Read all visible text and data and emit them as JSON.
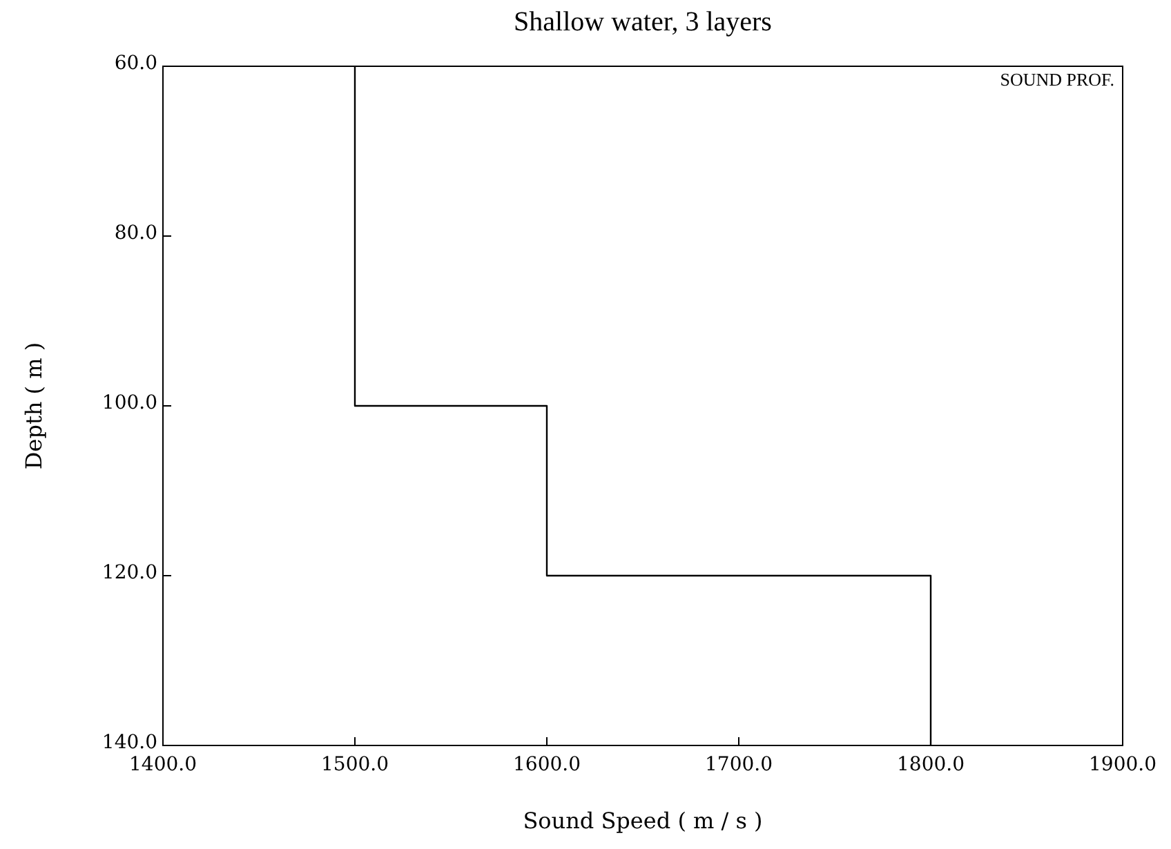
{
  "chart_data": {
    "type": "line",
    "title": "Shallow water, 3 layers",
    "xlabel": "Sound Speed ( m / s )",
    "ylabel": "Depth ( m )",
    "annotations": [
      "SOUND PROF."
    ],
    "x": [
      1500,
      1500,
      1600,
      1600,
      1800,
      1800
    ],
    "series": [
      {
        "color": "#000000",
        "values": [
          60,
          100,
          100,
          120,
          120,
          140
        ]
      }
    ],
    "xlim": [
      1400,
      1900
    ],
    "xticks": [
      {
        "value": 1400,
        "label": "1400.0"
      },
      {
        "value": 1500,
        "label": "1500.0"
      },
      {
        "value": 1600,
        "label": "1600.0"
      },
      {
        "value": 1700,
        "label": "1700.0"
      },
      {
        "value": 1800,
        "label": "1800.0"
      },
      {
        "value": 1900,
        "label": "1900.0"
      }
    ],
    "ylim": [
      140,
      60
    ],
    "yticks": [
      {
        "value": 60,
        "label": "60.0"
      },
      {
        "value": 80,
        "label": "80.0"
      },
      {
        "value": 100,
        "label": "100.0"
      },
      {
        "value": 120,
        "label": "120.0"
      },
      {
        "value": 140,
        "label": "140.0"
      }
    ],
    "grid": false,
    "marker": "none",
    "line_style": "solid"
  }
}
